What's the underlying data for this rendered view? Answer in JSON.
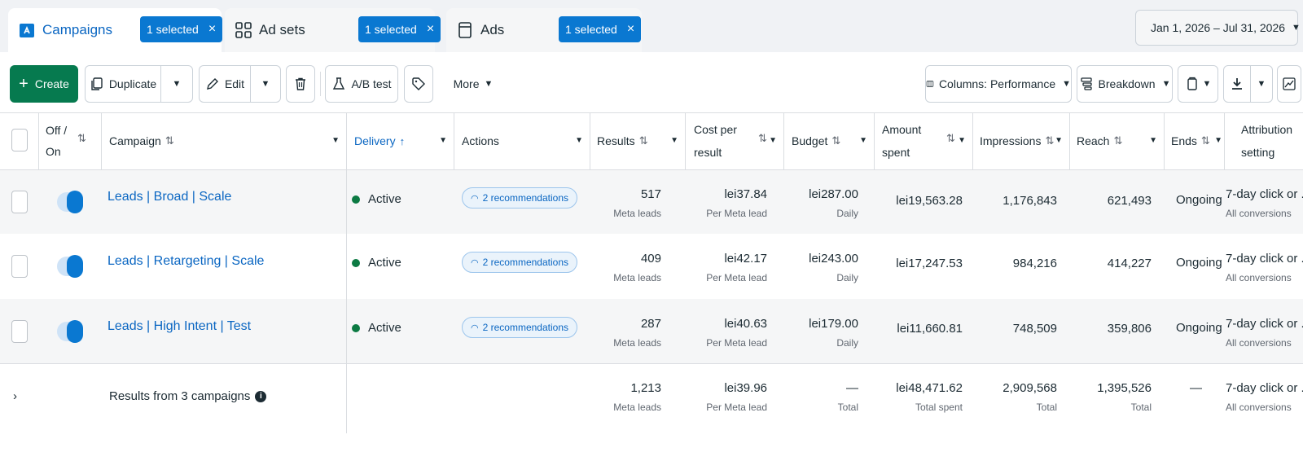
{
  "tabs": [
    {
      "label": "Campaigns",
      "chip": "1 selected"
    },
    {
      "label": "Ad sets",
      "chip": "1 selected"
    },
    {
      "label": "Ads",
      "chip": "1 selected"
    }
  ],
  "date_range": "Jan 1, 2026 – Jul 31, 2026",
  "toolbar": {
    "create": "Create",
    "duplicate": "Duplicate",
    "edit": "Edit",
    "ab_test": "A/B test",
    "more": "More",
    "columns": "Columns: Performance",
    "breakdown": "Breakdown"
  },
  "columns": {
    "off_on_1": "Off /",
    "off_on_2": "On",
    "campaign": "Campaign",
    "delivery": "Delivery",
    "actions": "Actions",
    "results": "Results",
    "cpr_1": "Cost per",
    "cpr_2": "result",
    "budget": "Budget",
    "amount_1": "Amount",
    "amount_2": "spent",
    "impressions": "Impressions",
    "reach": "Reach",
    "ends": "Ends",
    "attr_1": "Attribution",
    "attr_2": "setting"
  },
  "rows": [
    {
      "campaign": "Leads | Broad | Scale",
      "delivery": "Active",
      "actions": "2 recommendations",
      "results": "517",
      "results_sub": "Meta leads",
      "cpr": "lei37.84",
      "cpr_sub": "Per Meta lead",
      "budget": "lei287.00",
      "budget_sub": "Daily",
      "amount": "lei19,563.28",
      "impressions": "1,176,843",
      "reach": "621,493",
      "ends": "Ongoing",
      "attr": "7-day click or ...",
      "attr_sub": "All conversions"
    },
    {
      "campaign": "Leads | Retargeting | Scale",
      "delivery": "Active",
      "actions": "2 recommendations",
      "results": "409",
      "results_sub": "Meta leads",
      "cpr": "lei42.17",
      "cpr_sub": "Per Meta lead",
      "budget": "lei243.00",
      "budget_sub": "Daily",
      "amount": "lei17,247.53",
      "impressions": "984,216",
      "reach": "414,227",
      "ends": "Ongoing",
      "attr": "7-day click or ...",
      "attr_sub": "All conversions"
    },
    {
      "campaign": "Leads | High Intent | Test",
      "delivery": "Active",
      "actions": "2 recommendations",
      "results": "287",
      "results_sub": "Meta leads",
      "cpr": "lei40.63",
      "cpr_sub": "Per Meta lead",
      "budget": "lei179.00",
      "budget_sub": "Daily",
      "amount": "lei11,660.81",
      "impressions": "748,509",
      "reach": "359,806",
      "ends": "Ongoing",
      "attr": "7-day click or ...",
      "attr_sub": "All conversions"
    }
  ],
  "summary": {
    "label": "Results from 3 campaigns",
    "results": "1,213",
    "results_sub": "Meta leads",
    "cpr": "lei39.96",
    "cpr_sub": "Per Meta lead",
    "budget": "—",
    "budget_sub": "Total",
    "amount": "lei48,471.62",
    "amount_sub": "Total spent",
    "impressions": "2,909,568",
    "impressions_sub": "Total",
    "reach": "1,395,526",
    "reach_sub": "Total",
    "ends": "—",
    "attr": "7-day click or ...",
    "attr_sub": "All conversions"
  },
  "colors": {
    "accent": "#0a78d1",
    "link": "#0a66c2",
    "create": "#067a4f",
    "active_dot": "#0c7a43"
  }
}
